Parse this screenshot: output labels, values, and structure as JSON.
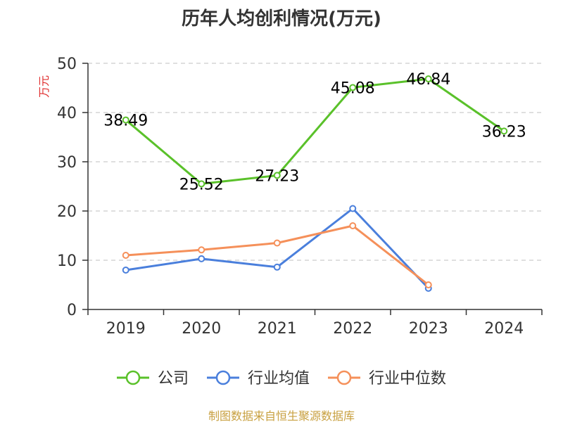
{
  "chart_data": {
    "type": "line",
    "title": "历年人均创利情况(万元)",
    "ylabel": "万元",
    "xlabel": "",
    "categories": [
      "2019",
      "2020",
      "2021",
      "2022",
      "2023",
      "2024"
    ],
    "ylim": [
      0,
      50
    ],
    "yticks": [
      0,
      10,
      20,
      30,
      40,
      50
    ],
    "grid": true,
    "legend_position": "bottom",
    "series": [
      {
        "name": "公司",
        "color": "#5ac12a",
        "values": [
          38.49,
          25.52,
          27.23,
          45.08,
          46.84,
          36.23
        ],
        "labels": [
          "38.49",
          "25.52",
          "27.23",
          "45.08",
          "46.84",
          "36.23"
        ]
      },
      {
        "name": "行业均值",
        "color": "#4a7fdc",
        "values": [
          8.0,
          10.3,
          8.6,
          20.5,
          4.3,
          null
        ]
      },
      {
        "name": "行业中位数",
        "color": "#f5905a",
        "values": [
          11.0,
          12.1,
          13.5,
          17.0,
          5.0,
          null
        ]
      }
    ]
  },
  "footer": "制图数据来自恒生聚源数据库"
}
